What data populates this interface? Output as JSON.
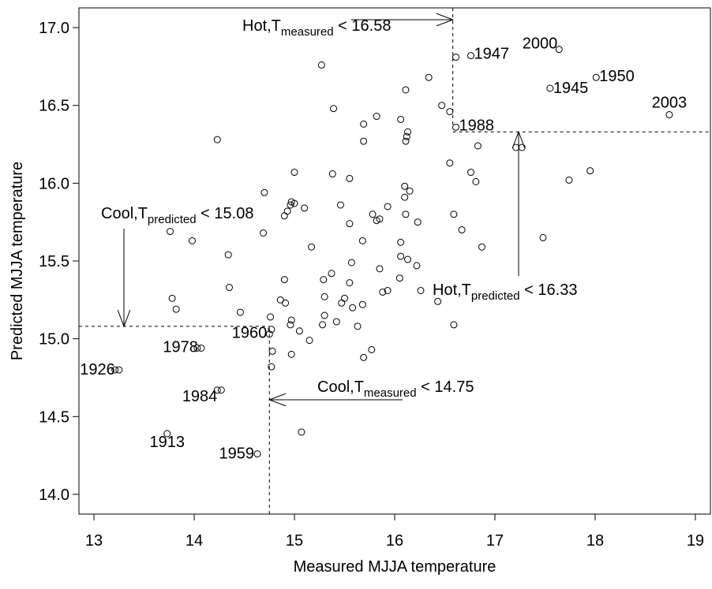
{
  "chart_data": {
    "type": "scatter",
    "x_label": "Measured MJJA temperature",
    "y_label": "Predicted MJJA temperature",
    "xlim": [
      12.85,
      19.15
    ],
    "ylim": [
      13.873,
      17.127
    ],
    "xticks": [
      13,
      14,
      15,
      16,
      17,
      18,
      19
    ],
    "yticks": [
      {
        "value": 14,
        "label": "14.0"
      },
      {
        "value": 14.5,
        "label": "14.5"
      },
      {
        "value": 15,
        "label": "15.0"
      },
      {
        "value": 15.5,
        "label": "15.5"
      },
      {
        "value": 16,
        "label": "16.0"
      },
      {
        "value": 16.5,
        "label": "16.5"
      },
      {
        "value": 17,
        "label": "17.0"
      }
    ],
    "series": [
      {
        "color": "#000000",
        "x": [
          16.61,
          15.27,
          16.34,
          16.47,
          16.55,
          16.11,
          15.39,
          15.82,
          16.06,
          15.69,
          16.13,
          16.12,
          16.11,
          15.69,
          14.23,
          16.83,
          17.21,
          17.27,
          15.0,
          16.55,
          15.38,
          15.55,
          17.74,
          17.95,
          16.76,
          16.81,
          16.1,
          16.15,
          16.1,
          14.7,
          14.97,
          15.0,
          14.96,
          15.46,
          15.1,
          15.93,
          14.93,
          14.9,
          15.78,
          16.11,
          16.59,
          15.85,
          15.82,
          15.55,
          16.23,
          16.67,
          13.76,
          14.69,
          17.48,
          13.98,
          15.68,
          16.06,
          15.17,
          16.87,
          14.34,
          16.06,
          16.13,
          15.57,
          16.22,
          15.85,
          15.37,
          16.05,
          14.9,
          15.29,
          15.55,
          14.35,
          15.93,
          15.88,
          16.26,
          15.3,
          15.5,
          14.86,
          15.47,
          14.91,
          15.58,
          16.43,
          15.68,
          13.78,
          13.82,
          14.46,
          14.76,
          15.3,
          15.42,
          15.28,
          14.96,
          15.63,
          16.59,
          14.97,
          14.77,
          15.05,
          15.15,
          14.78,
          15.77,
          15.69,
          14.97,
          14.03,
          13.21,
          14.23,
          14.77,
          15.07
        ],
        "y": [
          16.81,
          16.76,
          16.68,
          16.5,
          16.46,
          16.6,
          16.48,
          16.43,
          16.41,
          16.38,
          16.33,
          16.3,
          16.27,
          16.27,
          16.28,
          16.24,
          16.23,
          16.23,
          16.07,
          16.13,
          16.06,
          16.03,
          16.02,
          16.08,
          16.07,
          16.01,
          15.98,
          15.95,
          15.91,
          15.94,
          15.88,
          15.87,
          15.86,
          15.86,
          15.84,
          15.85,
          15.82,
          15.79,
          15.8,
          15.8,
          15.8,
          15.77,
          15.76,
          15.74,
          15.75,
          15.7,
          15.69,
          15.68,
          15.65,
          15.63,
          15.63,
          15.62,
          15.59,
          15.59,
          15.54,
          15.53,
          15.51,
          15.49,
          15.47,
          15.45,
          15.42,
          15.39,
          15.38,
          15.38,
          15.36,
          15.33,
          15.31,
          15.3,
          15.31,
          15.27,
          15.26,
          15.25,
          15.23,
          15.23,
          15.2,
          15.24,
          15.22,
          15.26,
          15.19,
          15.17,
          15.14,
          15.15,
          15.11,
          15.09,
          15.09,
          15.08,
          15.09,
          15.12,
          15.06,
          15.05,
          14.99,
          14.92,
          14.93,
          14.88,
          14.9,
          14.94,
          14.8,
          14.67,
          14.82,
          14.4
        ]
      },
      {
        "color": "#000000",
        "x": [
          16.76,
          17.64,
          18.01,
          17.55,
          18.74,
          16.61,
          14.75,
          14.07,
          13.25,
          14.27,
          13.73,
          14.63
        ],
        "y": [
          16.82,
          16.86,
          16.68,
          16.61,
          16.44,
          16.36,
          15.03,
          14.94,
          14.8,
          14.67,
          14.39,
          14.26
        ],
        "point_labels": [
          "1947",
          "2000",
          "1950",
          "1945",
          "2003",
          "1988",
          "1960",
          "1978",
          "1926",
          "1984",
          "1913",
          "1959"
        ]
      }
    ],
    "thresholds": [
      {
        "axis": "x",
        "value": 16.58,
        "text": "Hot,T",
        "sub": "measured",
        "rest": " < 16.58"
      },
      {
        "axis": "x",
        "value": 14.75,
        "text": "Cool,T",
        "sub": "measured",
        "rest": " < 14.75"
      },
      {
        "axis": "y",
        "value": 16.33,
        "text": "Hot,T",
        "sub": "predicted",
        "rest": " < 16.33"
      },
      {
        "axis": "y",
        "value": 15.08,
        "text": "Cool,T",
        "sub": "predicted",
        "rest": " < 15.08"
      }
    ]
  }
}
